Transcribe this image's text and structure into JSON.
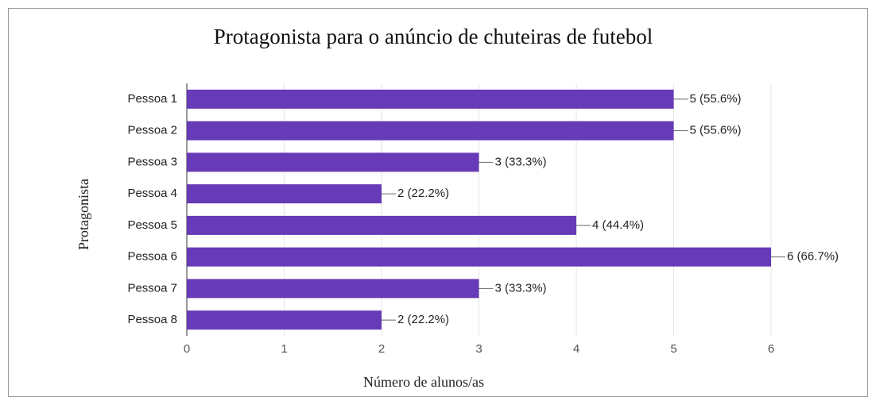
{
  "chart_data": {
    "type": "bar",
    "orientation": "horizontal",
    "title": "Protagonista para o anúncio de chuteiras de futebol",
    "x_label": "Número de alunos/as",
    "y_label": "Protagonista",
    "categories": [
      "Pessoa 1",
      "Pessoa 2",
      "Pessoa 3",
      "Pessoa 4",
      "Pessoa 5",
      "Pessoa 6",
      "Pessoa 7",
      "Pessoa 8"
    ],
    "values": [
      5,
      5,
      3,
      2,
      4,
      6,
      3,
      2
    ],
    "value_labels": [
      "5 (55.6%)",
      "5 (55.6%)",
      "3 (33.3%)",
      "2 (22.2%)",
      "4 (44.4%)",
      "6 (66.7%)",
      "3 (33.3%)",
      "2 (22.2%)"
    ],
    "color": "#673ab7",
    "xlim": [
      0,
      6
    ],
    "xticks": [
      0,
      1,
      2,
      3,
      4,
      5,
      6
    ],
    "grid": true
  }
}
